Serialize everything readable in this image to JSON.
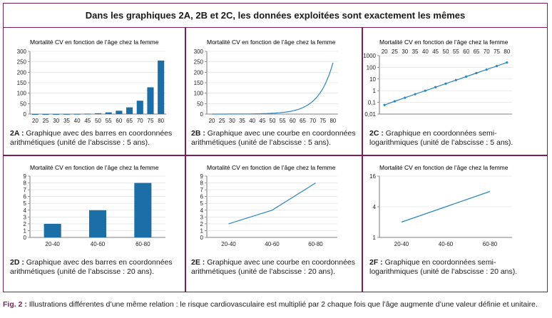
{
  "header": "Dans les graphiques 2A, 2B et 2C, les données exploitées sont exactement les mêmes",
  "figure_caption": {
    "label": "Fig. 2 :",
    "text": "Illustrations différentes d’une même relation : le risque cardiovasculaire est multiplié par 2 chaque fois que l’âge augmente d’une valeur définie et unitaire."
  },
  "colors": {
    "bar": "#1b6fa6",
    "line": "#2b86c2",
    "frame": "#7a1f5c"
  },
  "captions": [
    {
      "id": "2A :",
      "text": "Graphique avec des barres en coordonnées arithmétiques (unité de l’abscisse : 5 ans)."
    },
    {
      "id": "2B :",
      "text": "Graphique avec une courbe en coordonnées arithmétiques (unité de l’abscisse : 5 ans)."
    },
    {
      "id": "2C :",
      "text": "Graphique en coordonnées semi-logarithmiques (unité de l’abscisse : 5 ans)."
    },
    {
      "id": "2D :",
      "text": "Graphique avec des barres en coordonnées arithmétiques (unité de l’abscisse : 20 ans)."
    },
    {
      "id": "2E :",
      "text": "Graphique avec une courbe en coordonnées arithmétiques (unité de l’abscisse : 20 ans)."
    },
    {
      "id": "2F :",
      "text": "Graphique en coordonnées semi-logarithmiques (unité de l’abscisse : 20 ans)."
    }
  ],
  "chart_data": [
    {
      "id": "2A",
      "type": "bar",
      "title": "Mortalité CV en fonction de l’âge chez la femme",
      "categories": [
        "20",
        "25",
        "30",
        "35",
        "40",
        "45",
        "50",
        "55",
        "60",
        "65",
        "70",
        "75",
        "80"
      ],
      "values": [
        0.06,
        0.125,
        0.25,
        0.5,
        1,
        2,
        4,
        8,
        16,
        32,
        64,
        128,
        256
      ],
      "ylim": [
        0,
        300
      ],
      "yticks": [
        0,
        50,
        100,
        150,
        200,
        250,
        300
      ]
    },
    {
      "id": "2B",
      "type": "line",
      "title": "Mortalité CV en fonction de l’âge chez la femme",
      "categories": [
        "20",
        "25",
        "30",
        "35",
        "40",
        "45",
        "50",
        "55",
        "60",
        "65",
        "70",
        "75",
        "80"
      ],
      "values": [
        0.06,
        0.125,
        0.25,
        0.5,
        1,
        2,
        4,
        8,
        16,
        32,
        64,
        128,
        256
      ],
      "ylim": [
        0,
        300
      ],
      "yticks": [
        0,
        50,
        100,
        150,
        200,
        250,
        300
      ]
    },
    {
      "id": "2C",
      "type": "line",
      "scale": "log",
      "title": "Mortalité CV en fonction de l’âge chez la femme",
      "categories": [
        "20",
        "25",
        "30",
        "35",
        "40",
        "45",
        "50",
        "55",
        "60",
        "65",
        "70",
        "75",
        "80"
      ],
      "values": [
        0.06,
        0.125,
        0.25,
        0.5,
        1,
        2,
        4,
        8,
        16,
        32,
        64,
        128,
        256
      ],
      "ylim": [
        0.01,
        1000
      ],
      "yticks": [
        "0,01",
        "0,1",
        "1",
        "10",
        "100",
        "1000"
      ],
      "xaxis_position": "top"
    },
    {
      "id": "2D",
      "type": "bar",
      "title": "Mortalité CV en fonction de l’âge chez la femme",
      "categories": [
        "20-40",
        "40-60",
        "60-80"
      ],
      "values": [
        2,
        4,
        8
      ],
      "ylim": [
        0,
        9
      ],
      "yticks": [
        0,
        1,
        2,
        3,
        4,
        5,
        6,
        7,
        8,
        9
      ]
    },
    {
      "id": "2E",
      "type": "line",
      "title": "Mortalité CV en fonction de l’âge chez la femme",
      "categories": [
        "20-40",
        "40-60",
        "60-80"
      ],
      "values": [
        2,
        4,
        8
      ],
      "ylim": [
        0,
        9
      ],
      "yticks": [
        0,
        1,
        2,
        3,
        4,
        5,
        6,
        7,
        8,
        9
      ]
    },
    {
      "id": "2F",
      "type": "line",
      "scale": "log",
      "title": "Mortalité CV en fonction de l’âge chez la femme",
      "categories": [
        "20-40",
        "40-60",
        "60-80"
      ],
      "values": [
        2,
        4,
        8
      ],
      "ylim": [
        1,
        16
      ],
      "yticks": [
        "1",
        "4",
        "16"
      ]
    }
  ]
}
